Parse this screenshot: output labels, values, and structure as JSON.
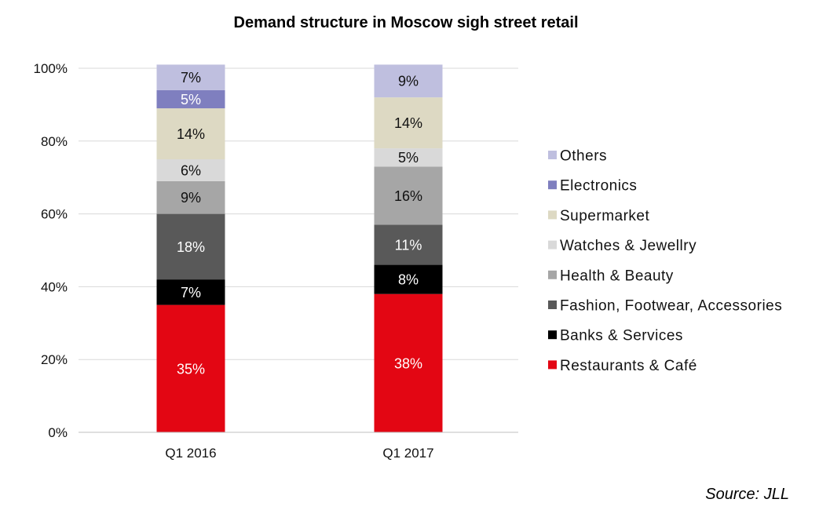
{
  "chart_data": {
    "type": "bar",
    "stacked": true,
    "title": "Demand structure in Moscow sigh street retail",
    "source": "Source: JLL",
    "categories": [
      "Q1 2016",
      "Q1 2017"
    ],
    "ylim": [
      0,
      100
    ],
    "y_ticks": [
      {
        "value": 0,
        "label": "0%"
      },
      {
        "value": 20,
        "label": "20%"
      },
      {
        "value": 40,
        "label": "40%"
      },
      {
        "value": 60,
        "label": "60%"
      },
      {
        "value": 80,
        "label": "80%"
      },
      {
        "value": 100,
        "label": "100%"
      }
    ],
    "grid": true,
    "legend_position": "right",
    "series": [
      {
        "name": "Restaurants & Café",
        "color": "#e30613",
        "label_color": "#ffffff",
        "values": [
          35,
          38
        ],
        "labels": [
          "35%",
          "38%"
        ]
      },
      {
        "name": "Banks & Services",
        "color": "#000000",
        "label_color": "#ffffff",
        "values": [
          7,
          8
        ],
        "labels": [
          "7%",
          "8%"
        ]
      },
      {
        "name": "Fashion, Footwear, Accessories",
        "color": "#595959",
        "label_color": "#ffffff",
        "values": [
          18,
          11
        ],
        "labels": [
          "18%",
          "11%"
        ]
      },
      {
        "name": "Health & Beauty",
        "color": "#a6a6a6",
        "label_color": "#111111",
        "values": [
          9,
          16
        ],
        "labels": [
          "9%",
          "16%"
        ]
      },
      {
        "name": "Watches & Jewellry",
        "color": "#d9d9d9",
        "label_color": "#111111",
        "values": [
          6,
          5
        ],
        "labels": [
          "6%",
          "5%"
        ]
      },
      {
        "name": "Supermarket",
        "color": "#ddd9c3",
        "label_color": "#111111",
        "values": [
          14,
          14
        ],
        "labels": [
          "14%",
          "14%"
        ]
      },
      {
        "name": "Electronics",
        "color": "#7f7fbf",
        "label_color": "#ffffff",
        "values": [
          5,
          0
        ],
        "labels": [
          "5%",
          ""
        ]
      },
      {
        "name": "Others",
        "color": "#bfbfdf",
        "label_color": "#111111",
        "values": [
          7,
          9
        ],
        "labels": [
          "7%",
          "9%"
        ]
      }
    ]
  }
}
